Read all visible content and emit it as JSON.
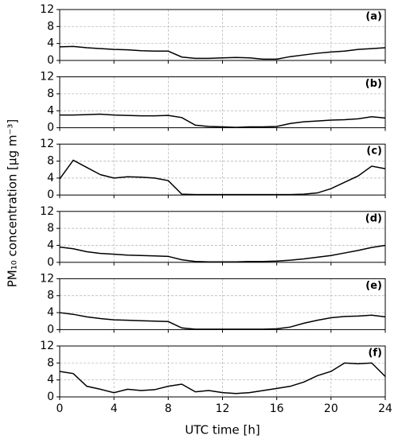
{
  "chart_data": [
    {
      "type": "line",
      "label": "(a)",
      "ylabel": "PM₁₀ concentration [µg m⁻³]",
      "xlim": [
        0,
        24
      ],
      "xticks": [
        0,
        4,
        8,
        12,
        16,
        20,
        24
      ],
      "xtick_labels": false,
      "ylim": [
        0,
        12
      ],
      "yticks": [
        0,
        4,
        8,
        12
      ],
      "grid": true,
      "color": "#000000",
      "x": [
        0,
        1,
        2,
        3,
        4,
        5,
        6,
        7,
        8,
        9,
        10,
        11,
        12,
        13,
        14,
        15,
        16,
        17,
        18,
        19,
        20,
        21,
        22,
        23,
        24
      ],
      "values": [
        3.2,
        3.3,
        3.0,
        2.8,
        2.6,
        2.5,
        2.3,
        2.2,
        2.2,
        0.8,
        0.5,
        0.5,
        0.6,
        0.7,
        0.6,
        0.3,
        0.3,
        0.9,
        1.3,
        1.7,
        2.0,
        2.2,
        2.6,
        2.8,
        3.0
      ]
    },
    {
      "type": "line",
      "label": "(b)",
      "xlim": [
        0,
        24
      ],
      "xticks": [
        0,
        4,
        8,
        12,
        16,
        20,
        24
      ],
      "xtick_labels": false,
      "ylim": [
        0,
        12
      ],
      "yticks": [
        0,
        4,
        8,
        12
      ],
      "grid": true,
      "color": "#000000",
      "x": [
        0,
        1,
        2,
        3,
        4,
        5,
        6,
        7,
        8,
        9,
        10,
        11,
        12,
        13,
        14,
        15,
        16,
        17,
        18,
        19,
        20,
        21,
        22,
        23,
        24
      ],
      "values": [
        3.0,
        3.0,
        3.1,
        3.2,
        3.0,
        2.9,
        2.8,
        2.8,
        2.9,
        2.4,
        0.6,
        0.3,
        0.2,
        0.1,
        0.2,
        0.2,
        0.3,
        1.0,
        1.4,
        1.6,
        1.8,
        1.9,
        2.1,
        2.6,
        2.3
      ]
    },
    {
      "type": "line",
      "label": "(c)",
      "xlim": [
        0,
        24
      ],
      "xticks": [
        0,
        4,
        8,
        12,
        16,
        20,
        24
      ],
      "xtick_labels": false,
      "ylim": [
        0,
        12
      ],
      "yticks": [
        0,
        4,
        8,
        12
      ],
      "grid": true,
      "color": "#000000",
      "x": [
        0,
        1,
        2,
        3,
        4,
        5,
        6,
        7,
        8,
        9,
        10,
        11,
        12,
        13,
        14,
        15,
        16,
        17,
        18,
        19,
        20,
        21,
        22,
        23,
        24
      ],
      "values": [
        3.8,
        8.2,
        6.5,
        4.8,
        4.0,
        4.3,
        4.2,
        4.0,
        3.4,
        0.2,
        0.1,
        0.1,
        0.1,
        0.1,
        0.1,
        0.1,
        0.1,
        0.1,
        0.2,
        0.5,
        1.5,
        3.0,
        4.5,
        6.8,
        6.2
      ]
    },
    {
      "type": "line",
      "label": "(d)",
      "xlim": [
        0,
        24
      ],
      "xticks": [
        0,
        4,
        8,
        12,
        16,
        20,
        24
      ],
      "xtick_labels": false,
      "ylim": [
        0,
        12
      ],
      "yticks": [
        0,
        4,
        8,
        12
      ],
      "grid": true,
      "color": "#000000",
      "x": [
        0,
        1,
        2,
        3,
        4,
        5,
        6,
        7,
        8,
        9,
        10,
        11,
        12,
        13,
        14,
        15,
        16,
        17,
        18,
        19,
        20,
        21,
        22,
        23,
        24
      ],
      "values": [
        3.6,
        3.2,
        2.5,
        2.1,
        1.9,
        1.7,
        1.6,
        1.5,
        1.4,
        0.6,
        0.2,
        0.1,
        0.1,
        0.1,
        0.2,
        0.2,
        0.3,
        0.5,
        0.8,
        1.2,
        1.6,
        2.2,
        2.8,
        3.5,
        4.0
      ]
    },
    {
      "type": "line",
      "label": "(e)",
      "xlim": [
        0,
        24
      ],
      "xticks": [
        0,
        4,
        8,
        12,
        16,
        20,
        24
      ],
      "xtick_labels": false,
      "ylim": [
        0,
        12
      ],
      "yticks": [
        0,
        4,
        8,
        12
      ],
      "grid": true,
      "color": "#000000",
      "x": [
        0,
        1,
        2,
        3,
        4,
        5,
        6,
        7,
        8,
        9,
        10,
        11,
        12,
        13,
        14,
        15,
        16,
        17,
        18,
        19,
        20,
        21,
        22,
        23,
        24
      ],
      "values": [
        4.0,
        3.6,
        3.0,
        2.6,
        2.3,
        2.2,
        2.1,
        2.0,
        1.9,
        0.4,
        0.1,
        0.1,
        0.1,
        0.1,
        0.1,
        0.1,
        0.2,
        0.6,
        1.5,
        2.2,
        2.8,
        3.1,
        3.2,
        3.4,
        3.0
      ]
    },
    {
      "type": "line",
      "label": "(f)",
      "xlabel": "UTC time [h]",
      "xlim": [
        0,
        24
      ],
      "xticks": [
        0,
        4,
        8,
        12,
        16,
        20,
        24
      ],
      "xtick_labels": true,
      "ylim": [
        0,
        12
      ],
      "yticks": [
        0,
        4,
        8,
        12
      ],
      "grid": true,
      "color": "#000000",
      "x": [
        0,
        1,
        2,
        3,
        4,
        5,
        6,
        7,
        8,
        9,
        10,
        11,
        12,
        13,
        14,
        15,
        16,
        17,
        18,
        19,
        20,
        21,
        22,
        23,
        24
      ],
      "values": [
        6.0,
        5.5,
        2.5,
        1.8,
        1.0,
        1.8,
        1.5,
        1.7,
        2.5,
        3.0,
        1.2,
        1.5,
        1.0,
        0.8,
        1.0,
        1.5,
        2.0,
        2.5,
        3.5,
        5.0,
        6.0,
        8.0,
        7.8,
        8.0,
        4.8
      ]
    }
  ]
}
